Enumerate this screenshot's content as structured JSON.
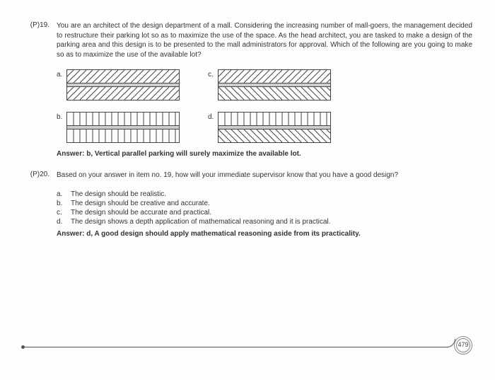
{
  "q19": {
    "number": "(P)19.",
    "text": "You are an architect of the design department of a mall. Considering the increasing number of mall-goers, the management decided to restructure their parking lot so as to maximize the use of the space. As the head architect, you are tasked to make a design of the parking area and this design is to be presented to the mall administrators for approval. Which of the following are you going to make so as to maximize the use of the available lot?",
    "labels": {
      "a": "a.",
      "b": "b.",
      "c": "c.",
      "d": "d."
    },
    "answer": "Answer: b, Vertical parallel parking will surely maximize the available lot.",
    "diagrams": {
      "a": {
        "top": "diag-lr",
        "bottom": "diag-lr"
      },
      "b": {
        "top": "vert",
        "bottom": "vert"
      },
      "c": {
        "top": "diag-lr",
        "bottom": "diag-rl"
      },
      "d": {
        "top": "vert",
        "bottom": "diag-rl"
      },
      "stroke": "#444",
      "spacing": 9
    }
  },
  "q20": {
    "number": "(P)20.",
    "text": "Based on your answer in item no. 19, how will your immediate supervisor know that you have a good design?",
    "choices": {
      "a": {
        "l": "a.",
        "t": "The design should be realistic."
      },
      "b": {
        "l": "b.",
        "t": "The design should be creative and accurate."
      },
      "c": {
        "l": "c.",
        "t": "The design should be accurate and practical."
      },
      "d": {
        "l": "d.",
        "t": "The design shows a depth application of mathematical reasoning and it is practical."
      }
    },
    "answer": "Answer: d, A good design should apply mathematical reasoning aside from its practicality."
  },
  "pageNumber": "479"
}
